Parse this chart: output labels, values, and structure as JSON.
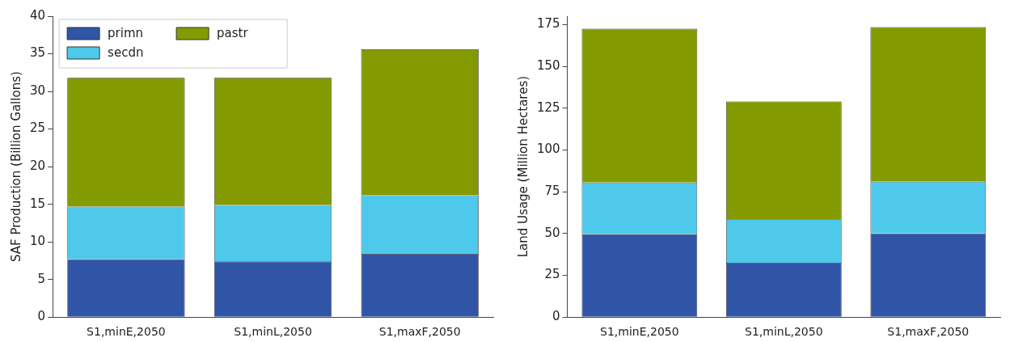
{
  "chart_data": [
    {
      "type": "bar",
      "stacked": true,
      "ylabel": "SAF Production (Billion Gallons)",
      "categories": [
        "S1,minE,2050",
        "S1,minL,2050",
        "S1,maxF,2050"
      ],
      "ylim": [
        0,
        40
      ],
      "yticks": [
        0,
        5,
        10,
        15,
        20,
        25,
        30,
        35,
        40
      ],
      "grid": false,
      "legend": "top left",
      "series": [
        {
          "name": "primn",
          "color": "#3155a6",
          "values": [
            7.7,
            7.4,
            8.4
          ]
        },
        {
          "name": "secdn",
          "color": "#4ec9ec",
          "values": [
            7.0,
            7.5,
            7.8
          ]
        },
        {
          "name": "pastr",
          "color": "#839b00",
          "values": [
            17.1,
            16.9,
            19.4
          ]
        }
      ]
    },
    {
      "type": "bar",
      "stacked": true,
      "ylabel": "Land Usage (Million Hectares)",
      "categories": [
        "S1,minE,2050",
        "S1,minL,2050",
        "S1,maxF,2050"
      ],
      "ylim": [
        0,
        180
      ],
      "yticks": [
        0,
        25,
        50,
        75,
        100,
        125,
        150,
        175
      ],
      "grid": false,
      "legend": false,
      "series": [
        {
          "color": "#3155a6",
          "values": [
            49.5,
            32.5,
            50
          ]
        },
        {
          "color": "#4ec9ec",
          "values": [
            31,
            26,
            31
          ]
        },
        {
          "color": "#839b00",
          "values": [
            92,
            70.5,
            92.5
          ]
        }
      ]
    }
  ]
}
